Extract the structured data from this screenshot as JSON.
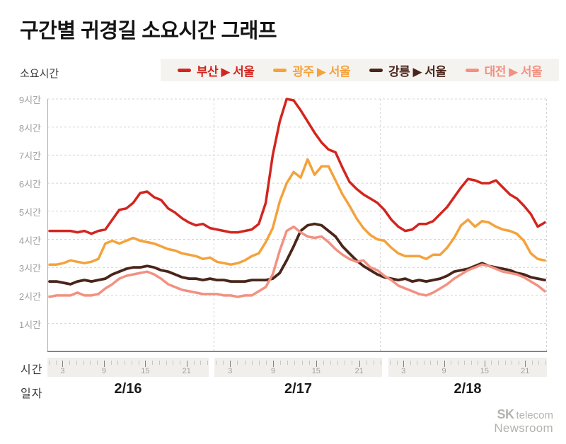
{
  "page": {
    "title": "구간별 귀경길 소요시간 그래프"
  },
  "chart_data": {
    "type": "line",
    "title": "구간별 귀경길 소요시간 그래프",
    "y_axis_title": "소요시간",
    "x_axis_time_label": "시간",
    "x_axis_date_label": "일자",
    "ylim": [
      0,
      9
    ],
    "grid": "dashed",
    "legend_position": "top",
    "ytick_labels": [
      "1시간",
      "2시간",
      "3시간",
      "4시간",
      "5시간",
      "6시간",
      "7시간",
      "8시간",
      "9시간"
    ],
    "days": [
      "2/16",
      "2/17",
      "2/18"
    ],
    "hours_per_day": 24,
    "hour_tick_labels": [
      "3",
      "9",
      "15",
      "21"
    ],
    "hour_tick_hours": [
      3,
      9,
      15,
      21
    ],
    "series": [
      {
        "name": "부산 ▶ 서울",
        "color": "#d2251e",
        "values": [
          4.3,
          4.3,
          4.3,
          4.3,
          4.25,
          4.3,
          4.2,
          4.3,
          4.35,
          4.7,
          5.05,
          5.1,
          5.3,
          5.65,
          5.7,
          5.5,
          5.4,
          5.1,
          4.95,
          4.75,
          4.6,
          4.5,
          4.55,
          4.4,
          4.35,
          4.3,
          4.25,
          4.25,
          4.3,
          4.35,
          4.55,
          5.3,
          7.0,
          8.2,
          9.0,
          8.95,
          8.6,
          8.2,
          7.8,
          7.45,
          7.2,
          7.1,
          6.55,
          6.05,
          5.8,
          5.6,
          5.45,
          5.3,
          5.05,
          4.7,
          4.45,
          4.3,
          4.35,
          4.55,
          4.55,
          4.65,
          4.9,
          5.15,
          5.5,
          5.85,
          6.15,
          6.1,
          6.0,
          6.0,
          6.1,
          5.85,
          5.6,
          5.45,
          5.2,
          4.9,
          4.45,
          4.6
        ]
      },
      {
        "name": "광주 ▶ 서울",
        "color": "#f4a23b",
        "values": [
          3.1,
          3.1,
          3.15,
          3.25,
          3.2,
          3.15,
          3.2,
          3.3,
          3.85,
          3.95,
          3.85,
          3.95,
          4.05,
          3.95,
          3.9,
          3.85,
          3.75,
          3.65,
          3.6,
          3.5,
          3.45,
          3.4,
          3.3,
          3.35,
          3.2,
          3.15,
          3.1,
          3.15,
          3.25,
          3.4,
          3.5,
          3.9,
          4.4,
          5.35,
          6.0,
          6.4,
          6.2,
          6.85,
          6.3,
          6.6,
          6.6,
          6.1,
          5.6,
          5.2,
          4.75,
          4.4,
          4.15,
          4.0,
          3.95,
          3.7,
          3.5,
          3.4,
          3.4,
          3.4,
          3.3,
          3.45,
          3.45,
          3.7,
          4.05,
          4.5,
          4.7,
          4.45,
          4.65,
          4.6,
          4.45,
          4.35,
          4.3,
          4.2,
          3.95,
          3.5,
          3.3,
          3.25
        ]
      },
      {
        "name": "강릉 ▶ 서울",
        "color": "#49251a",
        "values": [
          2.5,
          2.5,
          2.45,
          2.4,
          2.5,
          2.55,
          2.5,
          2.55,
          2.6,
          2.75,
          2.85,
          2.95,
          3.0,
          3.0,
          3.05,
          3.0,
          2.9,
          2.85,
          2.75,
          2.65,
          2.6,
          2.6,
          2.55,
          2.6,
          2.55,
          2.55,
          2.5,
          2.5,
          2.5,
          2.55,
          2.55,
          2.55,
          2.6,
          2.8,
          3.25,
          3.75,
          4.3,
          4.5,
          4.55,
          4.5,
          4.3,
          4.1,
          3.75,
          3.5,
          3.25,
          3.05,
          2.9,
          2.75,
          2.65,
          2.6,
          2.55,
          2.6,
          2.5,
          2.55,
          2.5,
          2.55,
          2.6,
          2.7,
          2.85,
          2.9,
          2.95,
          3.05,
          3.15,
          3.05,
          3.0,
          2.95,
          2.9,
          2.8,
          2.75,
          2.65,
          2.6,
          2.55
        ]
      },
      {
        "name": "대전 ▶ 서울",
        "color": "#f29180",
        "values": [
          1.95,
          2.0,
          2.0,
          2.0,
          2.1,
          2.0,
          2.0,
          2.05,
          2.25,
          2.4,
          2.6,
          2.7,
          2.75,
          2.8,
          2.85,
          2.75,
          2.6,
          2.4,
          2.3,
          2.2,
          2.15,
          2.1,
          2.05,
          2.05,
          2.05,
          2.0,
          2.0,
          1.95,
          2.0,
          2.0,
          2.15,
          2.3,
          2.75,
          3.6,
          4.3,
          4.45,
          4.25,
          4.1,
          4.05,
          4.1,
          3.9,
          3.65,
          3.45,
          3.3,
          3.2,
          3.25,
          3.0,
          2.9,
          2.7,
          2.55,
          2.35,
          2.25,
          2.15,
          2.05,
          2.0,
          2.1,
          2.25,
          2.4,
          2.6,
          2.75,
          2.9,
          3.0,
          3.1,
          3.05,
          2.95,
          2.85,
          2.8,
          2.75,
          2.65,
          2.5,
          2.35,
          2.15
        ]
      }
    ]
  },
  "colors": {
    "grid": "#d6d4d2",
    "left_axis": "#aeaeae",
    "bottom_axis": "#6f6f6f",
    "ruler_bg": "#f1efec",
    "legend_bg": "#f5f3f0",
    "minor_tick": "#c9c6c2",
    "major_tick": "#85817d"
  },
  "branding": {
    "logo_bold": "SK",
    "logo_light": "telecom",
    "logo_line2": "Newsroom"
  }
}
